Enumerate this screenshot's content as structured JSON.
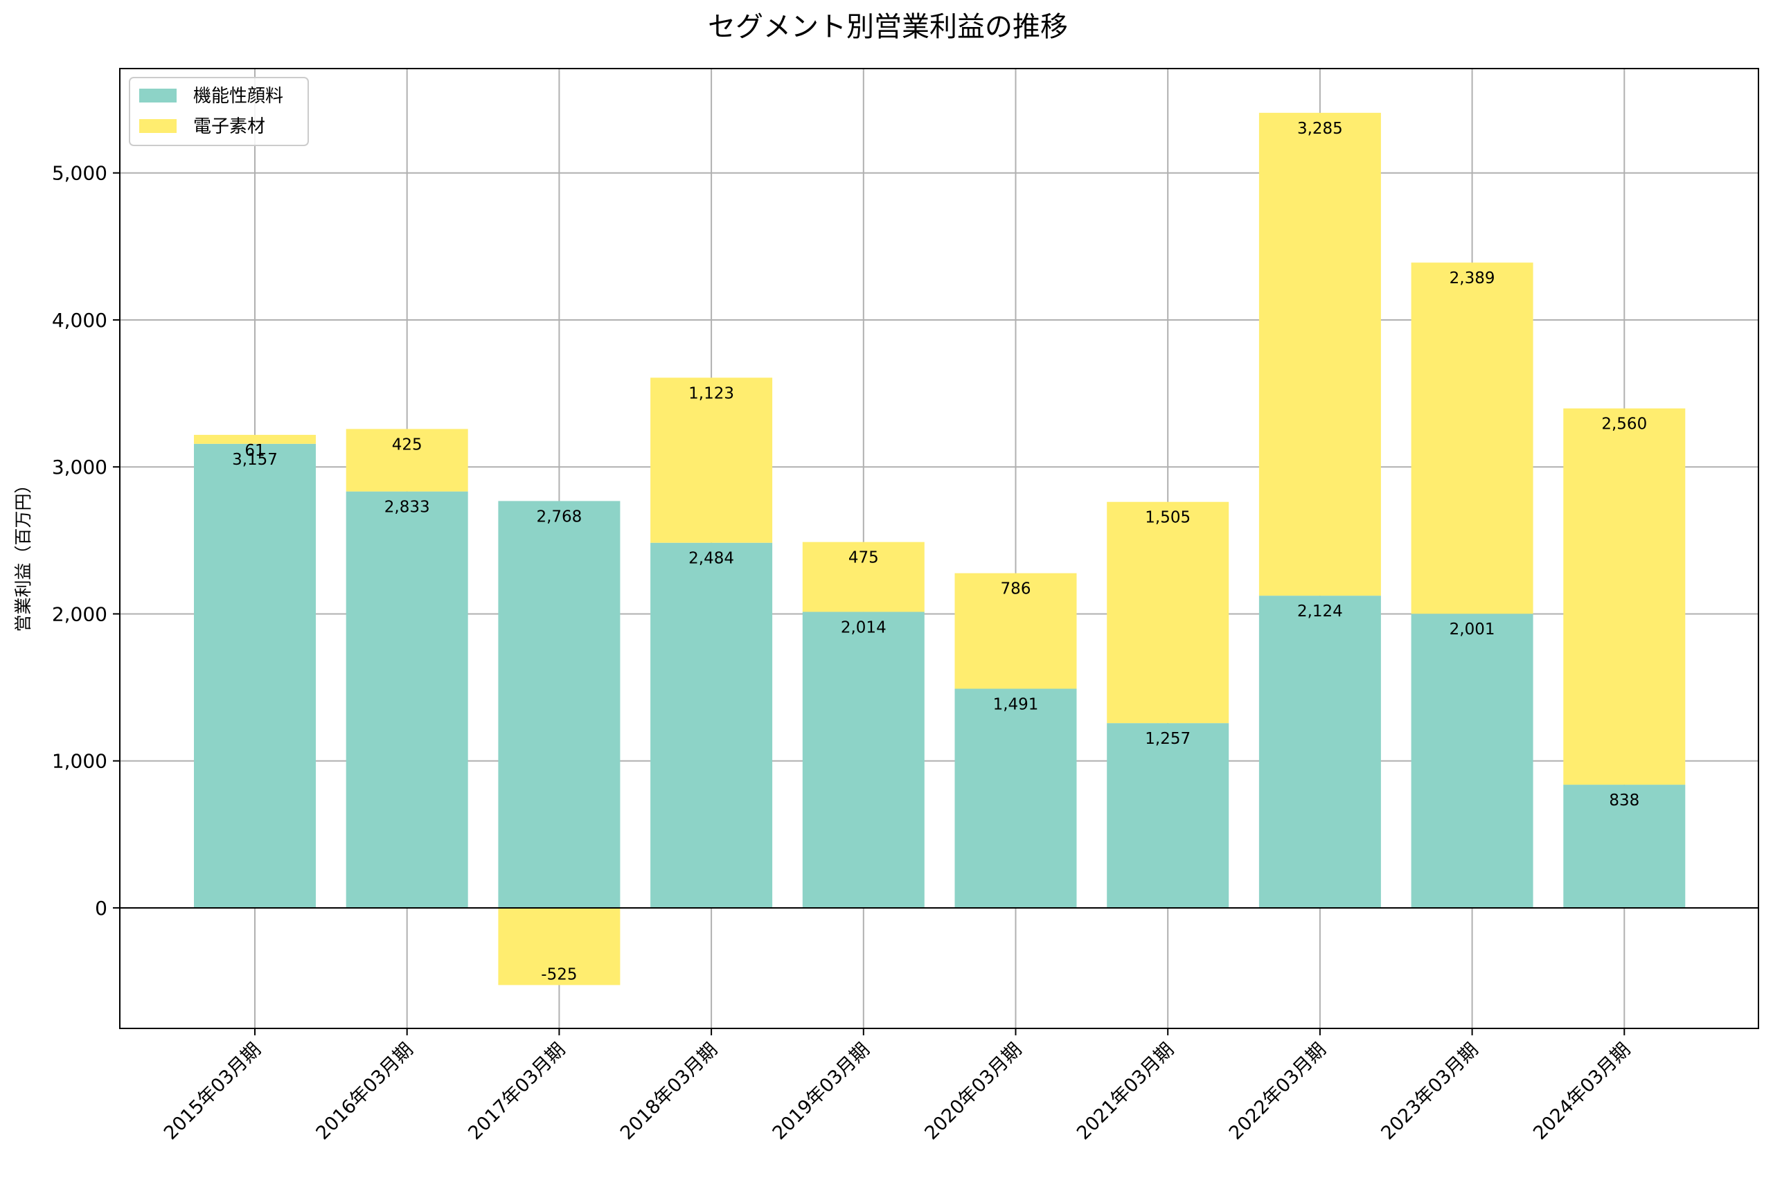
{
  "chart_data": {
    "type": "bar",
    "stacked": true,
    "title": "セグメント別営業利益の推移",
    "xlabel": "",
    "ylabel": "営業利益（百万円）",
    "ylim": [
      -820,
      5710
    ],
    "yticks": [
      0,
      1000,
      2000,
      3000,
      4000,
      5000
    ],
    "ytick_labels": [
      "0",
      "1,000",
      "2,000",
      "3,000",
      "4,000",
      "5,000"
    ],
    "grid": true,
    "legend_position": "top-left",
    "categories": [
      "2015年03月期",
      "2016年03月期",
      "2017年03月期",
      "2018年03月期",
      "2019年03月期",
      "2020年03月期",
      "2021年03月期",
      "2022年03月期",
      "2023年03月期",
      "2024年03月期"
    ],
    "series": [
      {
        "name": "機能性顔料",
        "color": "#8dd3c7",
        "values": [
          3157,
          2833,
          2768,
          2484,
          2014,
          1491,
          1257,
          2124,
          2001,
          838
        ],
        "labels": [
          "3,157",
          "2,833",
          "2,768",
          "2,484",
          "2,014",
          "1,491",
          "1,257",
          "2,124",
          "2,001",
          "838"
        ]
      },
      {
        "name": "電子素材",
        "color": "#ffed6f",
        "values": [
          61,
          425,
          -525,
          1123,
          475,
          786,
          1505,
          3285,
          2389,
          2560
        ],
        "labels": [
          "61",
          "425",
          "-525",
          "1,123",
          "475",
          "786",
          "1,505",
          "3,285",
          "2,389",
          "2,560"
        ]
      }
    ]
  }
}
